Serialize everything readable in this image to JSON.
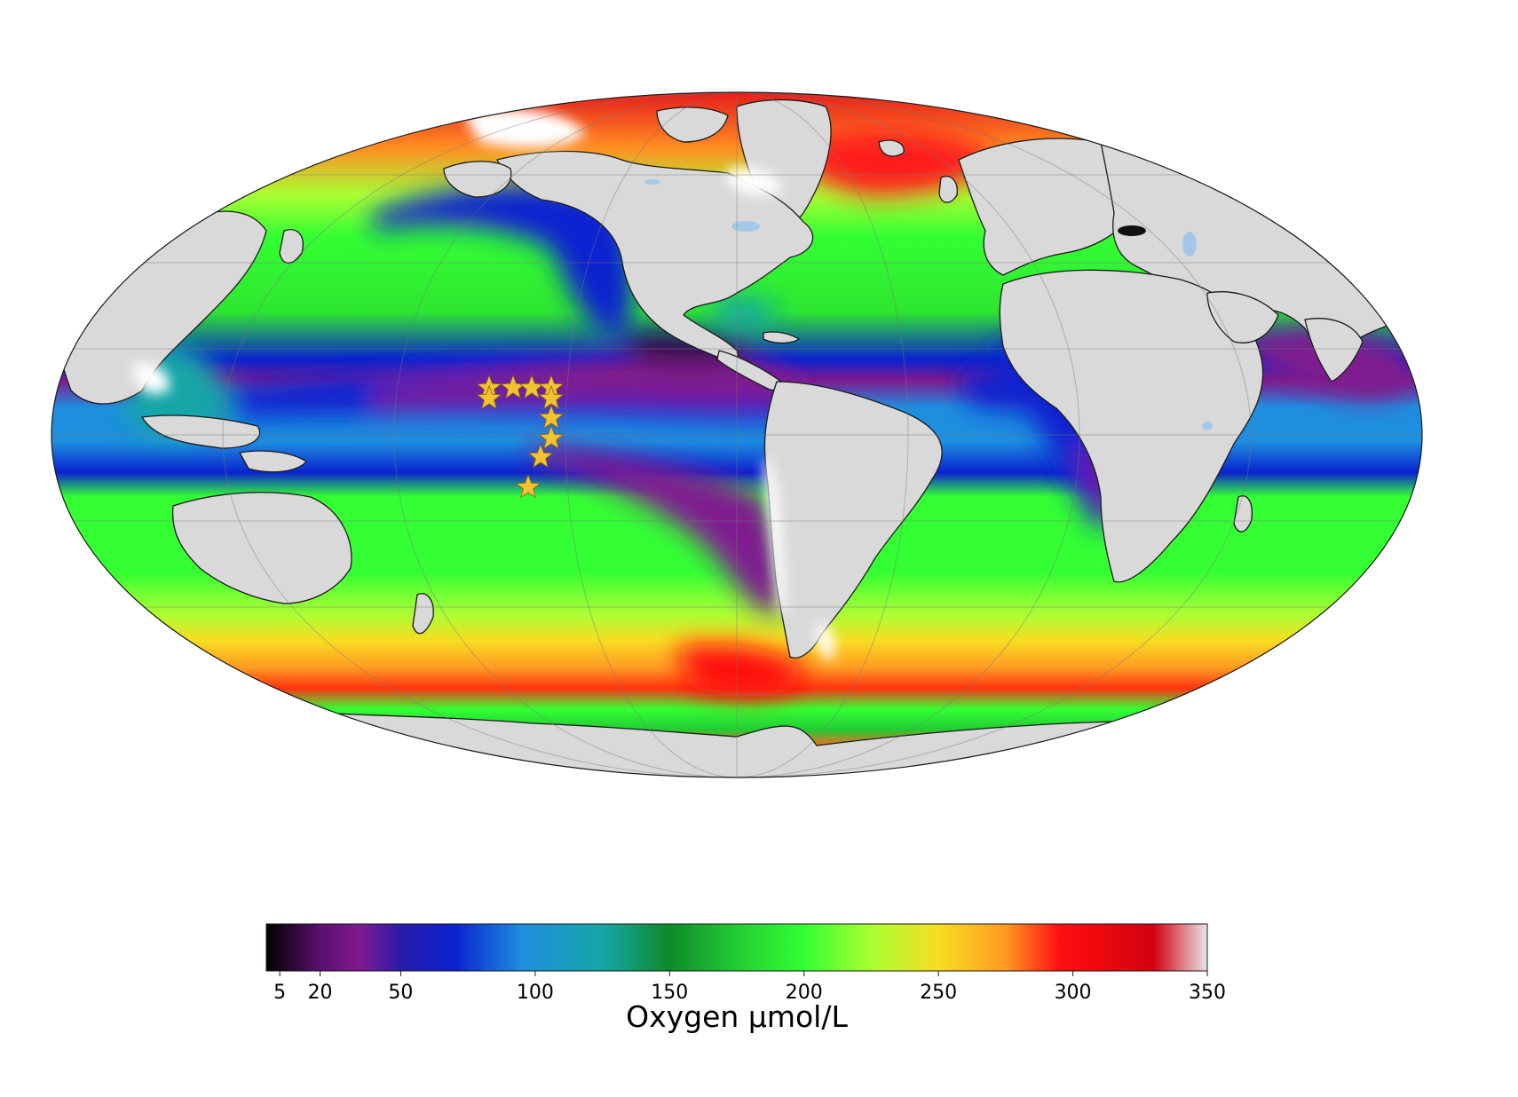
{
  "map": {
    "projection": "mollweide",
    "ocean_field": "dissolved oxygen",
    "land_color": "#d9d9d9",
    "coast_color": "#1a1a1a",
    "no_data_color": "#ffffff",
    "lake_color": "#a6c8e8",
    "grid": true,
    "stations": {
      "marker": "star-icon",
      "color": "#f2c230",
      "count": 10
    }
  },
  "colorbar": {
    "label": "Oxygen µmol/L",
    "ticks": [
      "5",
      "20",
      "50",
      "100",
      "150",
      "200",
      "250",
      "300",
      "350"
    ],
    "tick_values": [
      5,
      20,
      50,
      100,
      150,
      200,
      250,
      300,
      350
    ],
    "range": [
      0,
      350
    ],
    "stops": [
      {
        "value": 0,
        "color": "#000000"
      },
      {
        "value": 20,
        "color": "#5a0f6e"
      },
      {
        "value": 35,
        "color": "#7f1a8f"
      },
      {
        "value": 50,
        "color": "#2a1aa8"
      },
      {
        "value": 70,
        "color": "#0a22d0"
      },
      {
        "value": 95,
        "color": "#1e8edf"
      },
      {
        "value": 125,
        "color": "#16a6a6"
      },
      {
        "value": 150,
        "color": "#0e8a2a"
      },
      {
        "value": 175,
        "color": "#22cc33"
      },
      {
        "value": 200,
        "color": "#33ff33"
      },
      {
        "value": 225,
        "color": "#aaff33"
      },
      {
        "value": 250,
        "color": "#f8dd22"
      },
      {
        "value": 275,
        "color": "#ff9922"
      },
      {
        "value": 295,
        "color": "#ff0f0f"
      },
      {
        "value": 330,
        "color": "#d40010"
      },
      {
        "value": 350,
        "color": "#e6e6e6"
      }
    ]
  }
}
